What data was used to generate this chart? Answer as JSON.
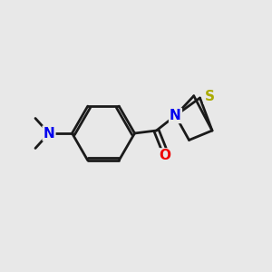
{
  "bg_color": "#e8e8e8",
  "bond_color": "#1a1a1a",
  "N_color": "#0000ee",
  "O_color": "#ee0000",
  "S_color": "#aaaa00",
  "lw": 2.0,
  "figsize": [
    3.0,
    3.0
  ],
  "dpi": 100,
  "xlim": [
    0,
    10
  ],
  "ylim": [
    0,
    10
  ]
}
